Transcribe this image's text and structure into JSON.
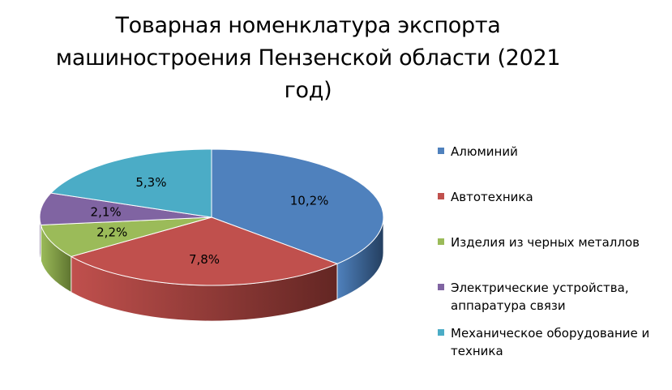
{
  "chart_data": {
    "type": "pie",
    "title": "Товарная номенклатура экспорта машиностроения Пензенской области (2021 год)",
    "categories": [
      "Алюминий",
      "Автотехника",
      "Изделия из черных металлов",
      "Электрические устройства, аппаратура связи",
      "Механическое оборудование и техника"
    ],
    "values": [
      10.2,
      7.8,
      2.2,
      2.1,
      5.3
    ],
    "data_labels": [
      "10,2%",
      "7,8%",
      "2,2%",
      "2,1%",
      "5,3%"
    ],
    "colors": [
      "#4F81BD",
      "#C0504D",
      "#9BBB59",
      "#8064A2",
      "#4BACC6"
    ],
    "side_colors": [
      "#243F60",
      "#632623",
      "#5F7530",
      "#403152",
      "#31849B"
    ],
    "legend_position": "right",
    "style": "3d-pie"
  }
}
